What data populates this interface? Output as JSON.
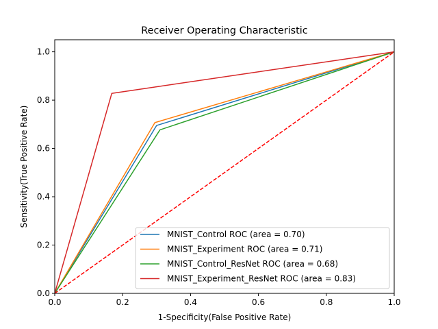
{
  "chart_data": {
    "type": "line",
    "title": "Receiver Operating Characteristic",
    "xlabel": "1-Specificity(False Positive Rate)",
    "ylabel": "Sensitivity(True Positive Rate)",
    "xlim": [
      0,
      1
    ],
    "ylim": [
      0,
      1.05
    ],
    "grid": false,
    "legend_position": "lower-right",
    "x_ticks": [
      0.0,
      0.2,
      0.4,
      0.6,
      0.8,
      1.0
    ],
    "x_tick_labels": [
      "0.0",
      "0.2",
      "0.4",
      "0.6",
      "0.8",
      "1.0"
    ],
    "y_ticks": [
      0.0,
      0.2,
      0.4,
      0.6,
      0.8,
      1.0
    ],
    "y_tick_labels": [
      "0.0",
      "0.2",
      "0.4",
      "0.6",
      "0.8",
      "1.0"
    ],
    "series": [
      {
        "name": "MNIST_Control ROC (area = 0.70)",
        "color": "#1f77b4",
        "x": [
          0,
          0.3,
          1
        ],
        "y": [
          0,
          0.695,
          1
        ]
      },
      {
        "name": "MNIST_Experiment ROC (area = 0.71)",
        "color": "#ff7f0e",
        "x": [
          0,
          0.295,
          1
        ],
        "y": [
          0,
          0.707,
          1
        ]
      },
      {
        "name": "MNIST_Control_ResNet ROC (area = 0.68)",
        "color": "#2ca02c",
        "x": [
          0,
          0.31,
          1
        ],
        "y": [
          0,
          0.677,
          1
        ]
      },
      {
        "name": "MNIST_Experiment_ResNet ROC (area = 0.83)",
        "color": "#d62728",
        "x": [
          0,
          0.168,
          1
        ],
        "y": [
          0,
          0.828,
          1
        ]
      }
    ],
    "reference_line": {
      "color": "#ff0000",
      "style": "dashed",
      "x": [
        0,
        1
      ],
      "y": [
        0,
        1
      ]
    }
  }
}
